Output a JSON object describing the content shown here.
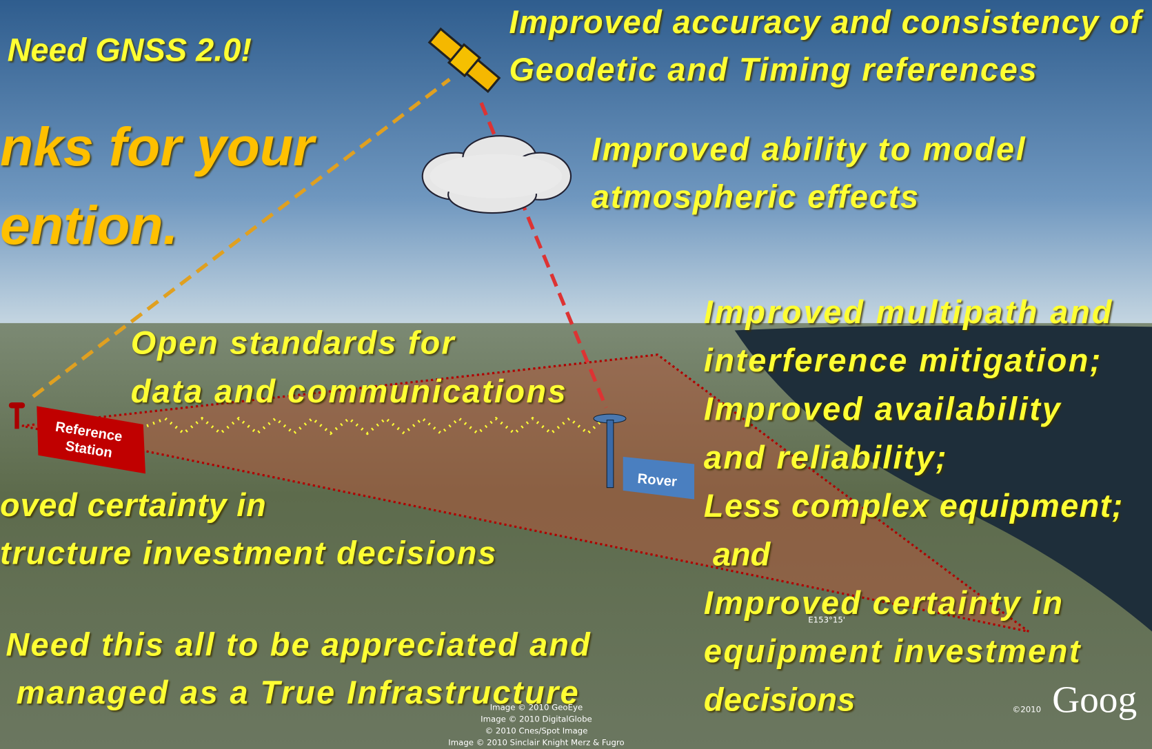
{
  "header": {
    "title": "Need GNSS 2.0!"
  },
  "thanks": [
    "nks for your",
    "ention."
  ],
  "callouts": {
    "accuracy": [
      "Improved accuracy and consistency of",
      "Geodetic and Timing references"
    ],
    "atmosphere": [
      "Improved ability to model",
      "atmospheric effects"
    ],
    "receiver": [
      "Improved multipath and",
      "interference mitigation;",
      "Improved availability",
      "and reliability;",
      "Less complex equipment;",
      " and",
      "Improved certainty in",
      "equipment investment",
      "decisions"
    ],
    "standards": [
      "Open standards for",
      "data and communications"
    ],
    "certainty": [
      "oved certainty in",
      "tructure investment decisions"
    ],
    "infrastructure": [
      "Need this all to be appreciated and",
      "managed as a True Infrastructure"
    ]
  },
  "labels": {
    "reference": [
      "Reference",
      "Station"
    ],
    "rover": "Rover",
    "coordinate": "E153°15'"
  },
  "credits": [
    "Image © 2010 GeoEye",
    "Image © 2010 DigitalGlobe",
    "© 2010 Cnes/Spot Image",
    "Image © 2010 Sinclair Knight Merz & Fugro"
  ],
  "logo": {
    "year": "©2010",
    "text": "Goog"
  }
}
